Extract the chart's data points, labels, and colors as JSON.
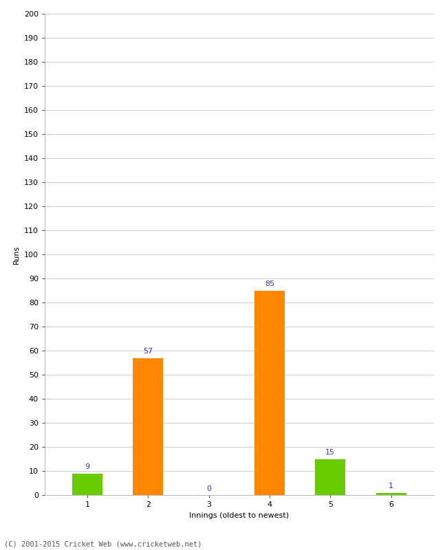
{
  "innings": [
    1,
    2,
    3,
    4,
    5,
    6
  ],
  "runs": [
    9,
    57,
    0,
    85,
    15,
    1
  ],
  "bar_colors": [
    "#66cc00",
    "#ff8800",
    "#ff8800",
    "#ff8800",
    "#66cc00",
    "#66cc00"
  ],
  "ylabel": "Runs",
  "xlabel": "Innings (oldest to newest)",
  "ylim": [
    0,
    200
  ],
  "yticks": [
    0,
    10,
    20,
    30,
    40,
    50,
    60,
    70,
    80,
    90,
    100,
    110,
    120,
    130,
    140,
    150,
    160,
    170,
    180,
    190,
    200
  ],
  "label_color": "#3333bb",
  "label_fontsize": 8,
  "axis_fontsize": 8,
  "tick_fontsize": 8,
  "background_color": "#ffffff",
  "grid_color": "#cccccc",
  "footer_text": "(C) 2001-2015 Cricket Web (www.cricketweb.net)"
}
